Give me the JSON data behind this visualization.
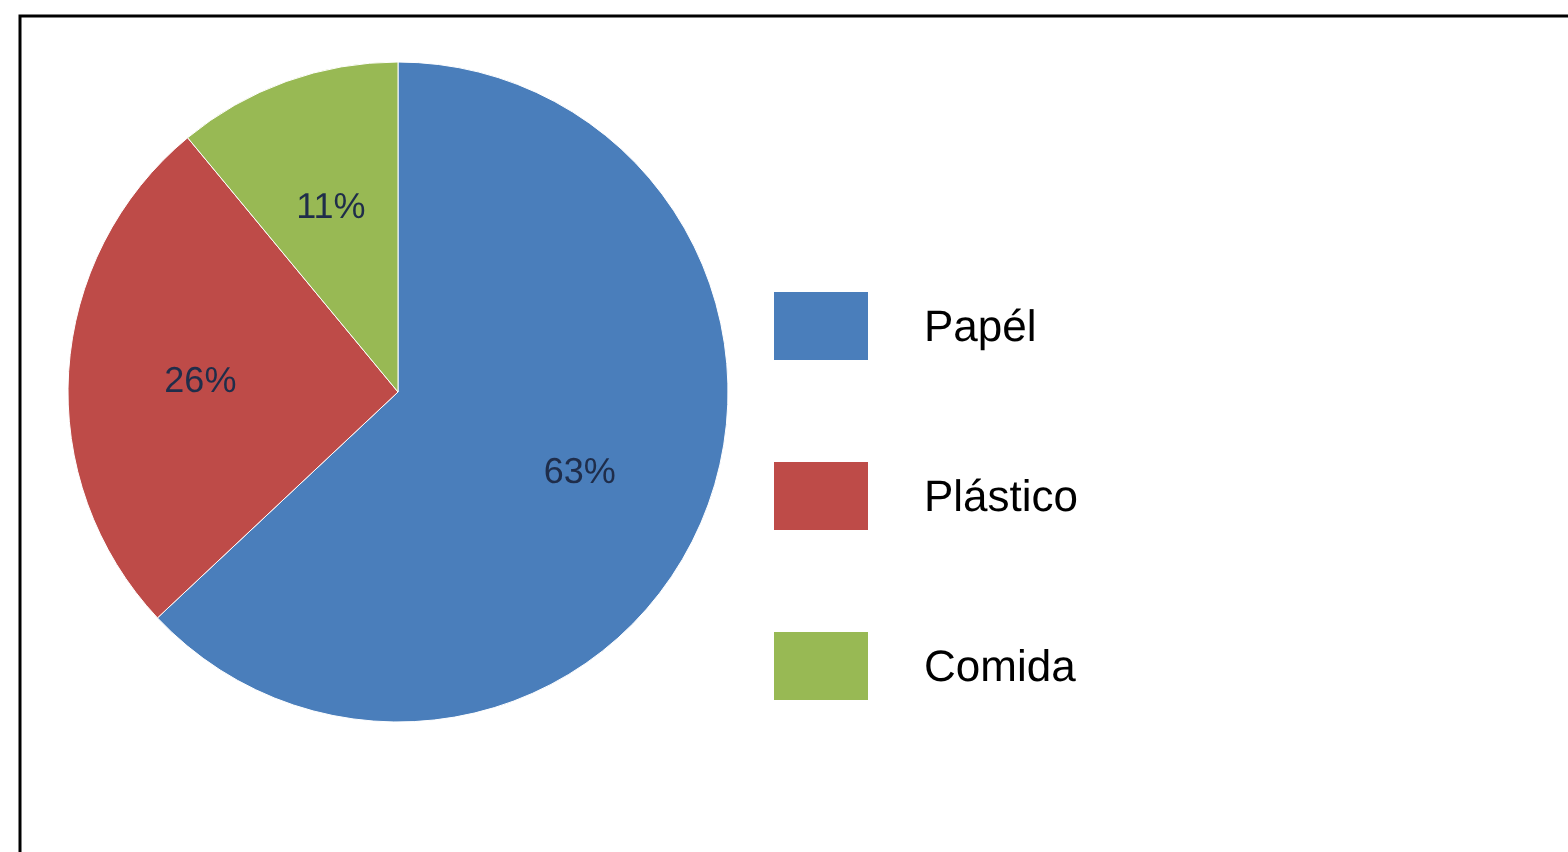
{
  "chart_data": {
    "type": "pie",
    "categories": [
      "Papél",
      "Plástico",
      "Comida"
    ],
    "values": [
      63,
      26,
      11
    ],
    "colors": [
      "#4a7ebb",
      "#be4b48",
      "#98b954"
    ],
    "value_labels": [
      "63%",
      "26%",
      "11%"
    ],
    "legend": "right"
  }
}
